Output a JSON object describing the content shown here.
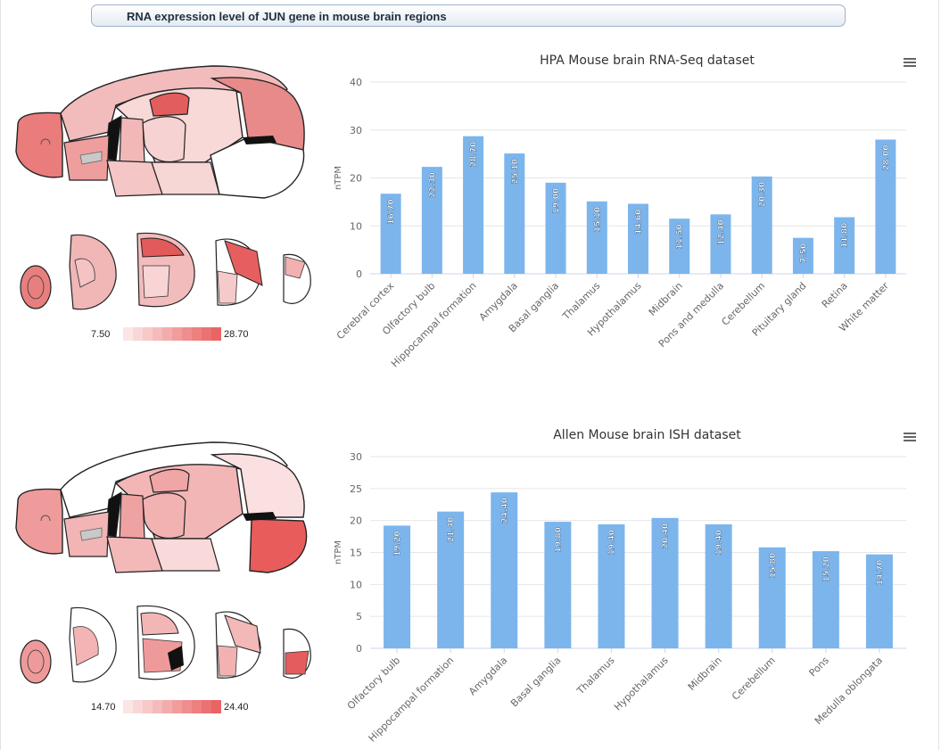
{
  "page_title": "RNA expression level of JUN gene in mouse brain regions",
  "colors": {
    "bar": "#7cb5ec",
    "scale": [
      "#fbe5e5",
      "#f9d7d7",
      "#f7c9c9",
      "#f5bbbb",
      "#f3acac",
      "#f19d9d",
      "#ef8e8e",
      "#ed8080",
      "#eb7272",
      "#e96464"
    ]
  },
  "scales": [
    {
      "min": "7.50",
      "max": "28.70"
    },
    {
      "min": "14.70",
      "max": "24.40"
    }
  ],
  "chart_data": [
    {
      "type": "bar",
      "title": "HPA Mouse brain RNA-Seq dataset",
      "ylabel": "nTPM",
      "ylim": [
        0,
        40
      ],
      "yticks": [
        0,
        10,
        20,
        30,
        40
      ],
      "grid": true,
      "categories": [
        "Cerebral cortex",
        "Olfactory bulb",
        "Hippocampal formation",
        "Amygdala",
        "Basal ganglia",
        "Thalamus",
        "Hypothalamus",
        "Midbrain",
        "Pons and medulla",
        "Cerebellum",
        "Pituitary gland",
        "Retina",
        "White matter"
      ],
      "values": [
        16.7,
        22.3,
        28.7,
        25.1,
        19.0,
        15.1,
        14.6,
        11.5,
        12.4,
        20.3,
        7.5,
        11.8,
        28.0
      ],
      "labels": [
        "16.70",
        "22.30",
        "28.70",
        "25.10",
        "19.00",
        "15.10",
        "14.60",
        "11.50",
        "12.40",
        "20.30",
        "7.50",
        "11.80",
        "28.00"
      ]
    },
    {
      "type": "bar",
      "title": "Allen Mouse brain ISH dataset",
      "ylabel": "nTPM",
      "ylim": [
        0,
        30
      ],
      "yticks": [
        0,
        5,
        10,
        15,
        20,
        25,
        30
      ],
      "grid": true,
      "categories": [
        "Olfactory bulb",
        "Hippocampal formation",
        "Amygdala",
        "Basal ganglia",
        "Thalamus",
        "Hypothalamus",
        "Midbrain",
        "Cerebellum",
        "Pons",
        "Medulla oblongata"
      ],
      "values": [
        19.2,
        21.4,
        24.4,
        19.8,
        19.4,
        20.4,
        19.4,
        15.8,
        15.2,
        14.7
      ],
      "labels": [
        "19.20",
        "21.40",
        "24.40",
        "19.80",
        "19.40",
        "20.40",
        "19.40",
        "15.80",
        "15.20",
        "14.70"
      ]
    }
  ]
}
